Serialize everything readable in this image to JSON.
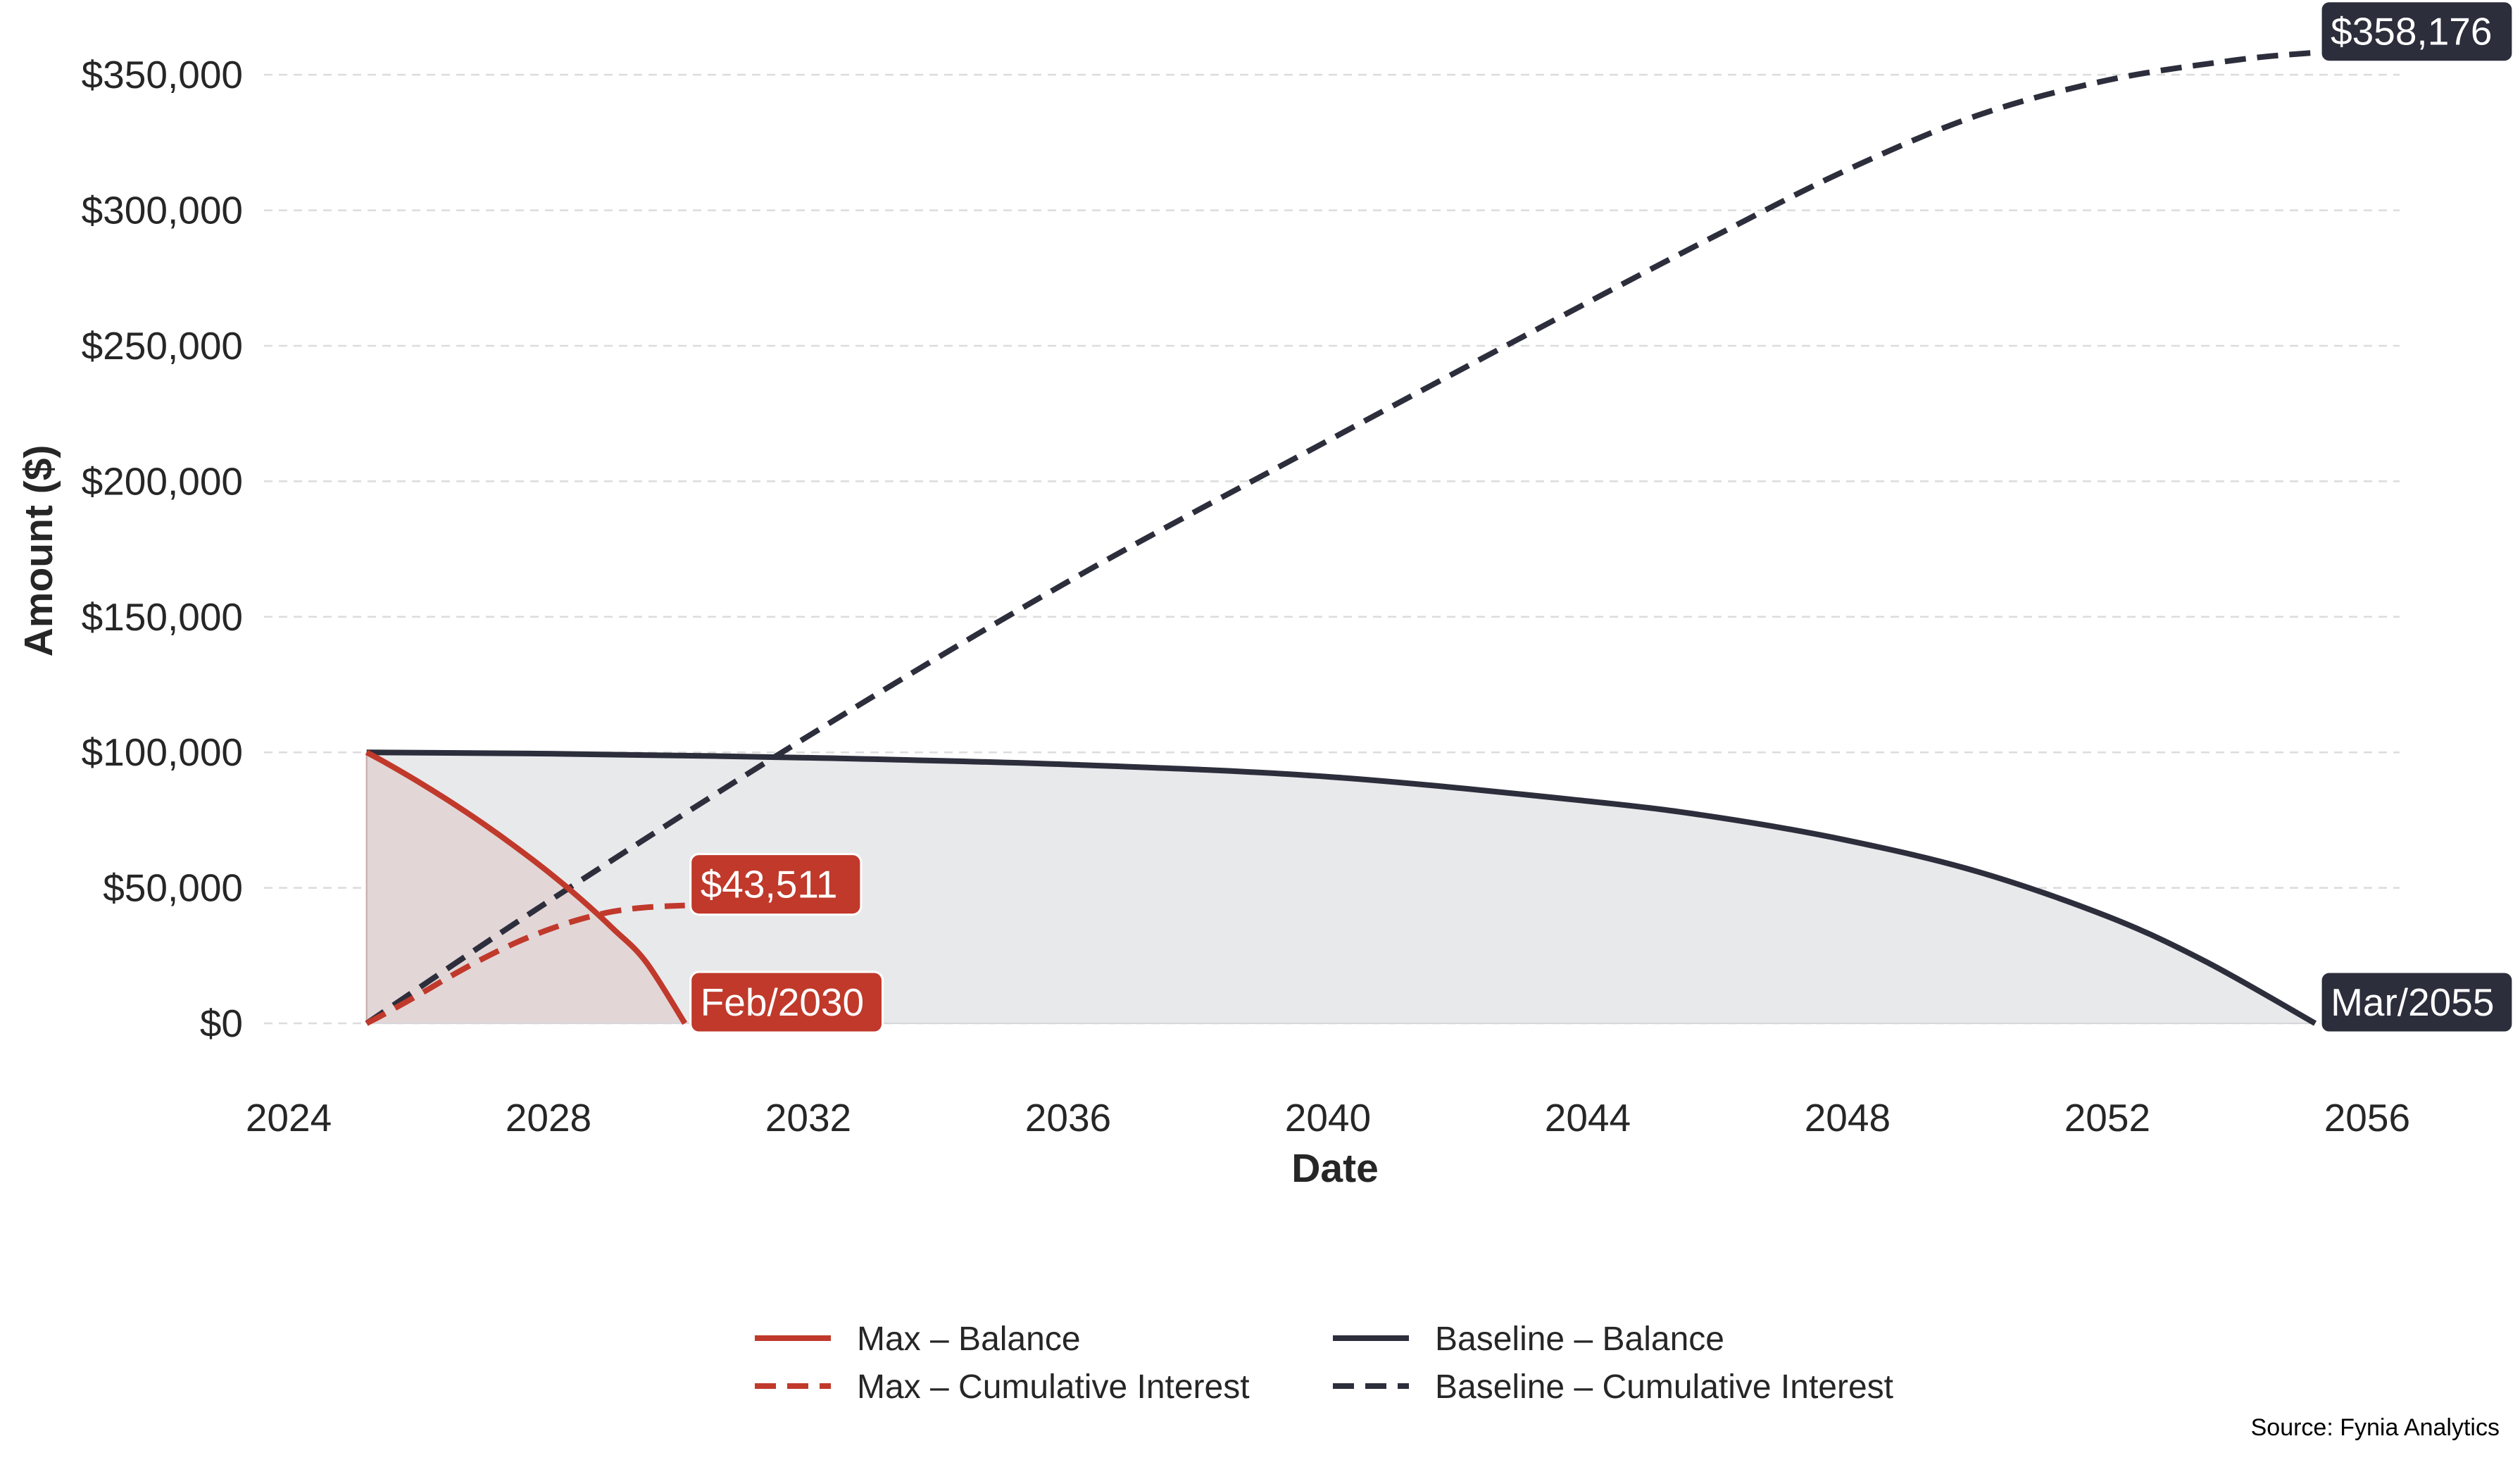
{
  "chart_data": {
    "type": "line",
    "xlabel": "Date",
    "ylabel": "Amount ($)",
    "xlim": [
      2024,
      2056.5
    ],
    "ylim": [
      -20000,
      362000
    ],
    "x_ticks": [
      2024,
      2028,
      2032,
      2036,
      2040,
      2044,
      2048,
      2052,
      2056
    ],
    "x_tick_labels": [
      "2024",
      "2028",
      "2032",
      "2036",
      "2040",
      "2044",
      "2048",
      "2052",
      "2056"
    ],
    "y_ticks": [
      0,
      50000,
      100000,
      150000,
      200000,
      250000,
      300000,
      350000
    ],
    "y_tick_labels": [
      "$0",
      "$50,000",
      "$100,000",
      "$150,000",
      "$200,000",
      "$250,000",
      "$300,000",
      "$350,000"
    ],
    "grid": "y-dashed",
    "series": [
      {
        "name": "Max – Balance",
        "color": "#c0392b",
        "style": "solid",
        "fill": true,
        "x": [
          2025.2,
          2025.5,
          2026.0,
          2026.5,
          2027.0,
          2027.5,
          2028.0,
          2028.5,
          2029.0,
          2029.5,
          2030.1
        ],
        "y": [
          100000,
          96100,
          89100,
          81600,
          73600,
          65000,
          55800,
          45800,
          34800,
          22700,
          0
        ]
      },
      {
        "name": "Max – Cumulative Interest",
        "color": "#c0392b",
        "style": "dashed",
        "fill": false,
        "x": [
          2025.2,
          2025.5,
          2026.0,
          2026.5,
          2027.0,
          2027.5,
          2028.0,
          2028.5,
          2029.0,
          2029.5,
          2030.1
        ],
        "y": [
          0,
          3800,
          10500,
          17500,
          24000,
          29800,
          34600,
          38500,
          41300,
          42800,
          43511
        ]
      },
      {
        "name": "Baseline – Balance",
        "color": "#2d2e3c",
        "style": "solid",
        "fill": true,
        "x": [
          2025.2,
          2028,
          2032,
          2036,
          2040,
          2044,
          2046,
          2048,
          2050,
          2052,
          2053.5,
          2055.2
        ],
        "y": [
          100000,
          99500,
          98000,
          95500,
          91000,
          82000,
          76000,
          67500,
          56000,
          39500,
          23000,
          0
        ]
      },
      {
        "name": "Baseline – Cumulative Interest",
        "color": "#2d2e3c",
        "style": "dashed",
        "fill": false,
        "x": [
          2025.2,
          2028,
          2032,
          2036,
          2040,
          2044,
          2046,
          2048,
          2050,
          2052,
          2054,
          2055.2
        ],
        "y": [
          0,
          45000,
          106000,
          163000,
          215000,
          266000,
          291000,
          315000,
          335000,
          348000,
          355500,
          358176
        ]
      }
    ],
    "annotations": [
      {
        "series": "Max – Cumulative Interest",
        "x": 2030.1,
        "y": 43511,
        "text": "$43,511",
        "color": "#c0392b"
      },
      {
        "series": "Max – Balance",
        "x": 2030.1,
        "y": 0,
        "text": "Feb/2030",
        "color": "#c0392b"
      },
      {
        "series": "Baseline – Cumulative Interest",
        "x": 2055.2,
        "y": 358176,
        "text": "$358,176",
        "color": "#2d2e3c"
      },
      {
        "series": "Baseline – Balance",
        "x": 2055.2,
        "y": 0,
        "text": "Mar/2055",
        "color": "#2d2e3c"
      }
    ],
    "legend": {
      "position": "bottom-center",
      "columns": 2,
      "entries": [
        "Max – Balance",
        "Max – Cumulative Interest",
        "Baseline – Balance",
        "Baseline – Cumulative Interest"
      ]
    },
    "source": "Source: Fynia Analytics"
  }
}
